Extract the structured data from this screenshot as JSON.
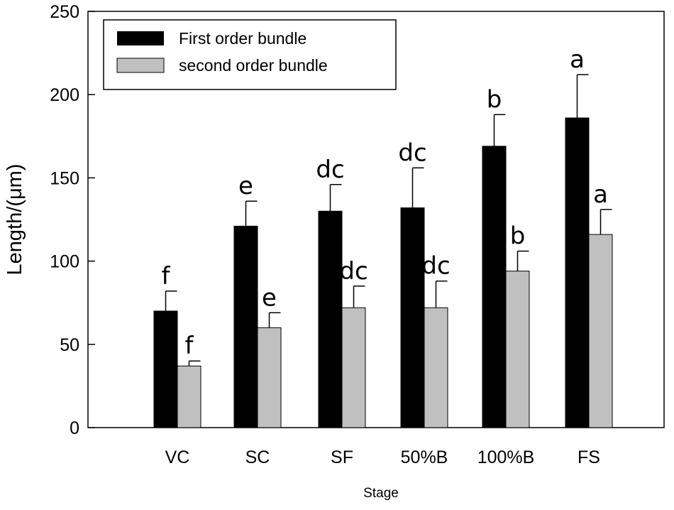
{
  "chart_data": {
    "type": "bar",
    "xlabel": "Stage",
    "ylabel": "Length/(μm)",
    "ylim": [
      0,
      250
    ],
    "yticks": [
      0,
      50,
      100,
      150,
      200,
      250
    ],
    "categories": [
      "VC",
      "SC",
      "SF",
      "50%B",
      "100%B",
      "FS"
    ],
    "legend_position": "top-left",
    "grid": false,
    "series": [
      {
        "name": "First order bundle",
        "color": "#000000",
        "values": [
          70,
          121,
          130,
          132,
          169,
          186
        ],
        "errors": [
          12,
          15,
          16,
          24,
          19,
          26
        ],
        "labels": [
          "f",
          "e",
          "dc",
          "dc",
          "b",
          "a"
        ]
      },
      {
        "name": "second order bundle",
        "color": "#c0c0c0",
        "values": [
          37,
          60,
          72,
          72,
          94,
          116
        ],
        "errors": [
          3,
          9,
          13,
          16,
          12,
          15
        ],
        "labels": [
          "f",
          "e",
          "dc",
          "dc",
          "b",
          "a"
        ]
      }
    ]
  }
}
